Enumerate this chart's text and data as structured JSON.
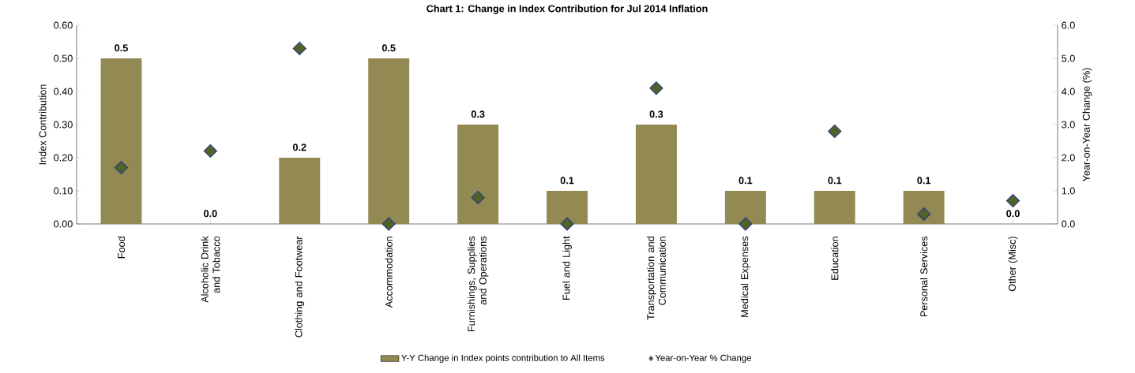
{
  "chart_data": {
    "type": "scatter",
    "title": "Chart 1: Change in Index Contribution for Jul 2014 Inflation",
    "ylabel": "Index Contribution",
    "y2label": "Year-on-Year Change (%)",
    "categories": [
      "Food",
      "Alcoholic Drink and Tobacco",
      "Clothing and Footwear",
      "Accommodation",
      "Furnishings, Supplies and Operations",
      "Fuel and Light",
      "Transportation and Communication",
      "Medical Expenses",
      "Education",
      "Personal Services",
      "Other (Misc)"
    ],
    "series": [
      {
        "name": "Y-Y Change in Index points contribution to All Items",
        "type": "bar",
        "color": "#938953",
        "values": [
          0.5,
          0.0,
          0.2,
          0.5,
          0.3,
          0.1,
          0.3,
          0.1,
          0.1,
          0.1,
          0.0
        ],
        "value_labels": [
          "0.5",
          "0.0",
          "0.2",
          "0.5",
          "0.3",
          "0.1",
          "0.3",
          "0.1",
          "0.1",
          "0.1",
          "0.0"
        ]
      },
      {
        "name": "Year-on-Year % Change",
        "axis": "y2",
        "marker": "diamond",
        "color": "#4f6228",
        "values": [
          1.7,
          2.2,
          5.3,
          0.0,
          0.8,
          0.0,
          4.1,
          0.0,
          2.8,
          0.3,
          0.7
        ]
      }
    ],
    "ylim": [
      0,
      0.6
    ],
    "yticks": [
      {
        "value": 0,
        "label": "0.00"
      },
      {
        "value": 0.1,
        "label": "0.10"
      },
      {
        "value": 0.2,
        "label": "0.20"
      },
      {
        "value": 0.3,
        "label": "0.30"
      },
      {
        "value": 0.4,
        "label": "0.40"
      },
      {
        "value": 0.5,
        "label": "0.50"
      },
      {
        "value": 0.6,
        "label": "0.60"
      }
    ],
    "y2lim": [
      0,
      6
    ],
    "y2ticks": [
      {
        "value": 0,
        "label": "0.0"
      },
      {
        "value": 1,
        "label": "1.0"
      },
      {
        "value": 2,
        "label": "2.0"
      },
      {
        "value": 3,
        "label": "3.0"
      },
      {
        "value": 4,
        "label": "4.0"
      },
      {
        "value": 5,
        "label": "5.0"
      },
      {
        "value": 6,
        "label": "6.0"
      }
    ],
    "legend": "bottom",
    "grid": false
  }
}
